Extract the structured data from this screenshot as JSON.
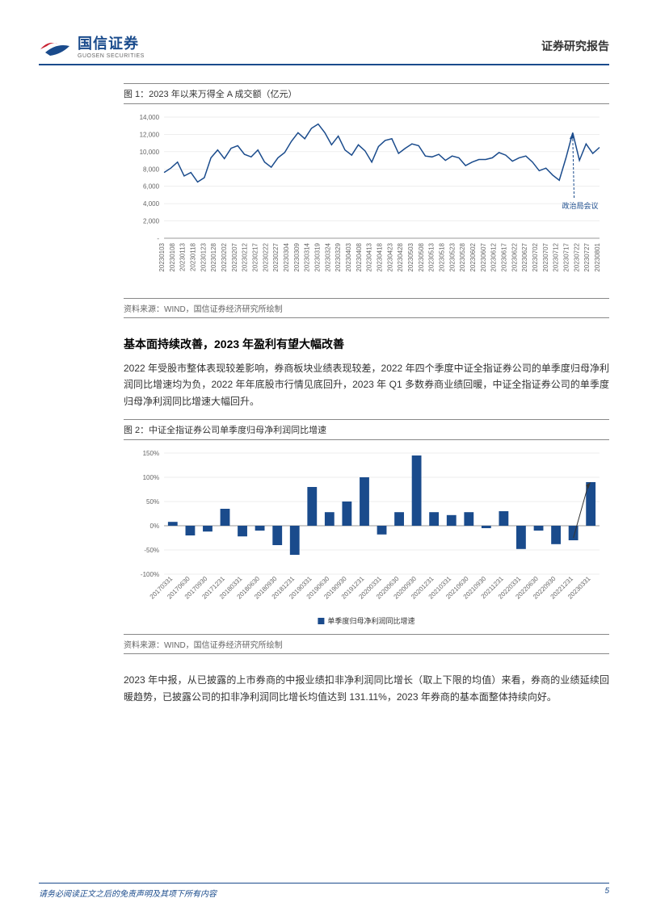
{
  "header": {
    "logo_cn": "国信证券",
    "logo_en": "GUOSEN SECURITIES",
    "report_type": "证券研究报告"
  },
  "figure1": {
    "title": "图 1：2023 年以来万得全 A 成交额（亿元）",
    "source": "资料来源：WIND，国信证券经济研究所绘制",
    "type": "line",
    "series_color": "#1a4b8c",
    "background_color": "#ffffff",
    "grid_color": "#dddddd",
    "ylim": [
      0,
      14000
    ],
    "ytick_step": 2000,
    "yticks": [
      0,
      2000,
      4000,
      6000,
      8000,
      10000,
      12000,
      14000
    ],
    "ytick_labels": [
      "-",
      "2,000",
      "4,000",
      "6,000",
      "8,000",
      "10,000",
      "12,000",
      "14,000"
    ],
    "x_labels": [
      "20230103",
      "20230108",
      "20230113",
      "20230118",
      "20230123",
      "20230128",
      "20230202",
      "20230207",
      "20230212",
      "20230217",
      "20230222",
      "20230227",
      "20230304",
      "20230309",
      "20230314",
      "20230319",
      "20230324",
      "20230329",
      "20230403",
      "20230408",
      "20230413",
      "20230418",
      "20230423",
      "20230428",
      "20230503",
      "20230508",
      "20230513",
      "20230518",
      "20230523",
      "20230528",
      "20230602",
      "20230607",
      "20230612",
      "20230617",
      "20230622",
      "20230627",
      "20230702",
      "20230707",
      "20230712",
      "20230717",
      "20230722",
      "20230727",
      "20230801"
    ],
    "values": [
      7600,
      8100,
      8800,
      7200,
      7600,
      6500,
      7000,
      9300,
      10200,
      9200,
      10400,
      10700,
      9700,
      9400,
      10200,
      8800,
      8200,
      9300,
      9900,
      11200,
      12200,
      11500,
      12700,
      13200,
      12200,
      10800,
      11800,
      10200,
      9600,
      10800,
      10100,
      8800,
      10600,
      11300,
      11500,
      9800,
      10400,
      10900,
      10700,
      9500,
      9400,
      9700,
      9000,
      9500,
      9300,
      8400,
      8800,
      9100,
      9100,
      9300,
      9900,
      9600,
      8900,
      9300,
      9500,
      8800,
      7800,
      8100,
      7300,
      6700,
      9300,
      12200,
      9000,
      10900,
      9800,
      10500
    ],
    "annotation": {
      "text": "政治局会议",
      "x_index": 60,
      "y_value": 7000
    },
    "line_width": 1.5,
    "label_fontsize": 8
  },
  "section1": {
    "heading": "基本面持续改善，2023 年盈利有望大幅改善",
    "paragraph": "2022 年受股市整体表现较差影响，券商板块业绩表现较差，2022 年四个季度中证全指证券公司的单季度归母净利润同比增速均为负，2022 年年底股市行情见底回升，2023 年 Q1 多数券商业绩回暖，中证全指证券公司的单季度归母净利润同比增速大幅回升。"
  },
  "figure2": {
    "title": "图 2：中证全指证券公司单季度归母净利润同比增速",
    "source": "资料来源：WIND，国信证券经济研究所绘制",
    "type": "bar",
    "bar_color": "#1a4b8c",
    "background_color": "#ffffff",
    "grid_color": "#dddddd",
    "ylim": [
      -100,
      150
    ],
    "ytick_step": 50,
    "yticks": [
      -100,
      -50,
      0,
      50,
      100,
      150
    ],
    "ytick_labels": [
      "-100%",
      "-50%",
      "0%",
      "50%",
      "100%",
      "150%"
    ],
    "x_labels": [
      "20170331",
      "20170630",
      "20170930",
      "20171231",
      "20180331",
      "20180630",
      "20180930",
      "20181231",
      "20190331",
      "20190630",
      "20190930",
      "20191231",
      "20200331",
      "20200630",
      "20200930",
      "20201231",
      "20210331",
      "20210630",
      "20210930",
      "20211231",
      "20220331",
      "20220630",
      "20220930",
      "20221231",
      "20230331"
    ],
    "values": [
      8,
      -20,
      -12,
      35,
      -22,
      -10,
      -40,
      -60,
      80,
      28,
      50,
      100,
      -18,
      28,
      145,
      28,
      22,
      28,
      -5,
      30,
      -48,
      -10,
      -38,
      -30,
      90
    ],
    "legend_label": "单季度归母净利润同比增速",
    "annotation_arrow": {
      "from_x_index": 23,
      "from_y": -25,
      "to_x_index": 24,
      "to_y": 90
    },
    "bar_width": 0.55,
    "label_fontsize": 8
  },
  "section2": {
    "paragraph": "2023 年中报，从已披露的上市券商的中报业绩扣非净利润同比增长（取上下限的均值）来看，券商的业绩延续回暖趋势，已披露公司的扣非净利润同比增长均值达到 131.11%，2023 年券商的基本面整体持续向好。"
  },
  "footer": {
    "disclaimer": "请务必阅读正文之后的免责声明及其项下所有内容",
    "page_number": "5"
  }
}
